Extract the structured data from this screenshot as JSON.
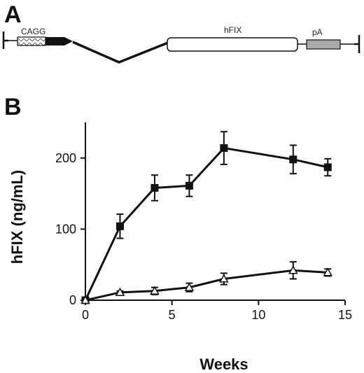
{
  "panels": {
    "a_label": "A",
    "b_label": "B"
  },
  "construct": {
    "segments": [
      "CAGG",
      "hFIX",
      "pA"
    ]
  },
  "chart_data": {
    "type": "line",
    "title": "",
    "xlabel": "Weeks",
    "ylabel": "hFIX (ng/mL)",
    "xlim": [
      0,
      15
    ],
    "ylim": [
      0,
      250
    ],
    "xticks": [
      0,
      5,
      10,
      15
    ],
    "yticks": [
      0,
      100,
      200
    ],
    "grid": false,
    "legend": "none",
    "series": [
      {
        "marker": "filled-square",
        "color": "#111111",
        "points": [
          {
            "x": 0,
            "y": 0,
            "err": 0
          },
          {
            "x": 2,
            "y": 104,
            "err": 17
          },
          {
            "x": 4,
            "y": 158,
            "err": 18
          },
          {
            "x": 6,
            "y": 161,
            "err": 15
          },
          {
            "x": 8,
            "y": 214,
            "err": 23
          },
          {
            "x": 12,
            "y": 198,
            "err": 20
          },
          {
            "x": 14,
            "y": 187,
            "err": 12
          }
        ]
      },
      {
        "marker": "open-triangle",
        "color": "#111111",
        "points": [
          {
            "x": 0,
            "y": 0,
            "err": 0
          },
          {
            "x": 2,
            "y": 11,
            "err": 2
          },
          {
            "x": 4,
            "y": 13,
            "err": 5
          },
          {
            "x": 6,
            "y": 18,
            "err": 6
          },
          {
            "x": 8,
            "y": 30,
            "err": 8
          },
          {
            "x": 12,
            "y": 42,
            "err": 12
          },
          {
            "x": 14,
            "y": 39,
            "err": 5
          }
        ]
      }
    ]
  }
}
